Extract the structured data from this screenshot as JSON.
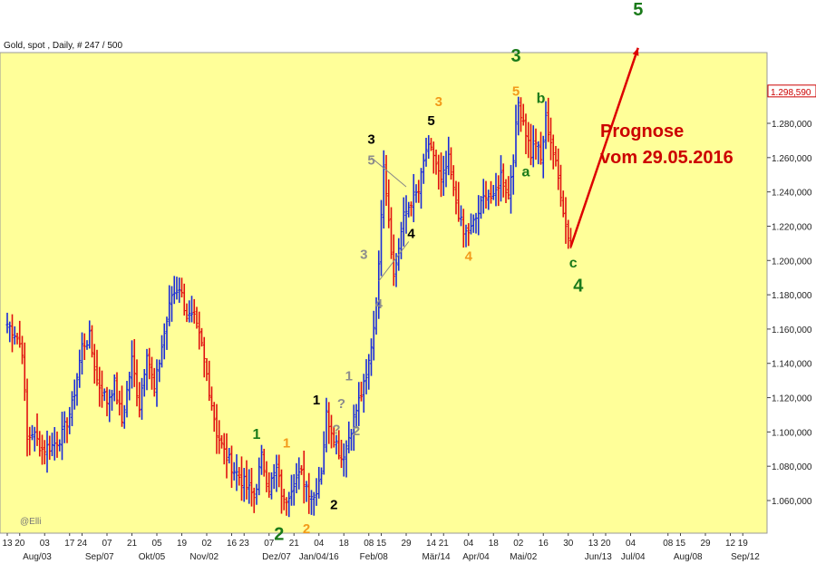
{
  "chart_data": {
    "type": "ohlc",
    "title": "Gold, spot , Daily, # 247 / 500",
    "watermark": "@Elli",
    "last_price_label": "1.298,590",
    "ylim": [
      1040,
      1330
    ],
    "y_ticks": [
      {
        "value": 1060,
        "label": "1.060,000"
      },
      {
        "value": 1080,
        "label": "1.080,000"
      },
      {
        "value": 1100,
        "label": "1.100,000"
      },
      {
        "value": 1120,
        "label": "1.120,000"
      },
      {
        "value": 1140,
        "label": "1.140,000"
      },
      {
        "value": 1160,
        "label": "1.160,000"
      },
      {
        "value": 1180,
        "label": "1.180,000"
      },
      {
        "value": 1200,
        "label": "1.200,000"
      },
      {
        "value": 1220,
        "label": "1.220,000"
      },
      {
        "value": 1240,
        "label": "1.240,000"
      },
      {
        "value": 1260,
        "label": "1.260,000"
      },
      {
        "value": 1280,
        "label": "1.280,000"
      }
    ],
    "x_day_ticks": [
      {
        "i": 0,
        "label": "13"
      },
      {
        "i": 5,
        "label": "20"
      },
      {
        "i": 15,
        "label": "03"
      },
      {
        "i": 25,
        "label": "17"
      },
      {
        "i": 30,
        "label": "24"
      },
      {
        "i": 40,
        "label": "07"
      },
      {
        "i": 50,
        "label": "21"
      },
      {
        "i": 60,
        "label": "05"
      },
      {
        "i": 70,
        "label": "19"
      },
      {
        "i": 80,
        "label": "02"
      },
      {
        "i": 90,
        "label": "16"
      },
      {
        "i": 95,
        "label": "23"
      },
      {
        "i": 105,
        "label": "07"
      },
      {
        "i": 115,
        "label": "21"
      },
      {
        "i": 125,
        "label": "04"
      },
      {
        "i": 135,
        "label": "18"
      },
      {
        "i": 145,
        "label": "08"
      },
      {
        "i": 150,
        "label": "15"
      },
      {
        "i": 160,
        "label": "29"
      },
      {
        "i": 170,
        "label": "14"
      },
      {
        "i": 175,
        "label": "21"
      },
      {
        "i": 185,
        "label": "04"
      },
      {
        "i": 195,
        "label": "18"
      },
      {
        "i": 205,
        "label": "02"
      },
      {
        "i": 215,
        "label": "16"
      },
      {
        "i": 225,
        "label": "30"
      },
      {
        "i": 235,
        "label": "13"
      },
      {
        "i": 240,
        "label": "20"
      },
      {
        "i": 250,
        "label": "04"
      },
      {
        "i": 265,
        "label": "08"
      },
      {
        "i": 270,
        "label": "15"
      },
      {
        "i": 280,
        "label": "29"
      },
      {
        "i": 290,
        "label": "12"
      },
      {
        "i": 295,
        "label": "19"
      }
    ],
    "x_month_ticks": [
      {
        "i": 12,
        "label": "Aug/03"
      },
      {
        "i": 37,
        "label": "Sep/07"
      },
      {
        "i": 58,
        "label": "Okt/05"
      },
      {
        "i": 79,
        "label": "Nov/02"
      },
      {
        "i": 108,
        "label": "Dez/07"
      },
      {
        "i": 125,
        "label": "Jan/04/16"
      },
      {
        "i": 147,
        "label": "Feb/08"
      },
      {
        "i": 172,
        "label": "Mär/14"
      },
      {
        "i": 188,
        "label": "Apr/04"
      },
      {
        "i": 207,
        "label": "Mai/02"
      },
      {
        "i": 237,
        "label": "Jun/13"
      },
      {
        "i": 251,
        "label": "Jul/04"
      },
      {
        "i": 273,
        "label": "Aug/08"
      },
      {
        "i": 296,
        "label": "Sep/12"
      }
    ],
    "anchors": [
      [
        0,
        1163
      ],
      [
        3,
        1158
      ],
      [
        6,
        1148
      ],
      [
        8,
        1095
      ],
      [
        10,
        1100
      ],
      [
        14,
        1090
      ],
      [
        18,
        1092
      ],
      [
        22,
        1098
      ],
      [
        26,
        1115
      ],
      [
        30,
        1150
      ],
      [
        33,
        1155
      ],
      [
        36,
        1130
      ],
      [
        40,
        1118
      ],
      [
        43,
        1128
      ],
      [
        46,
        1106
      ],
      [
        50,
        1142
      ],
      [
        53,
        1115
      ],
      [
        56,
        1148
      ],
      [
        59,
        1124
      ],
      [
        62,
        1150
      ],
      [
        66,
        1180
      ],
      [
        69,
        1185
      ],
      [
        72,
        1168
      ],
      [
        75,
        1165
      ],
      [
        78,
        1150
      ],
      [
        81,
        1125
      ],
      [
        84,
        1100
      ],
      [
        87,
        1088
      ],
      [
        91,
        1078
      ],
      [
        95,
        1070
      ],
      [
        99,
        1062
      ],
      [
        102,
        1085
      ],
      [
        105,
        1068
      ],
      [
        108,
        1078
      ],
      [
        111,
        1058
      ],
      [
        115,
        1072
      ],
      [
        118,
        1075
      ],
      [
        121,
        1066
      ],
      [
        123,
        1062
      ],
      [
        126,
        1078
      ],
      [
        128,
        1110
      ],
      [
        131,
        1098
      ],
      [
        134,
        1085
      ],
      [
        136,
        1092
      ],
      [
        139,
        1108
      ],
      [
        141,
        1118
      ],
      [
        144,
        1130
      ],
      [
        147,
        1162
      ],
      [
        149,
        1195
      ],
      [
        150,
        1230
      ],
      [
        151,
        1258
      ],
      [
        153,
        1225
      ],
      [
        155,
        1190
      ],
      [
        157,
        1208
      ],
      [
        159,
        1225
      ],
      [
        162,
        1235
      ],
      [
        165,
        1240
      ],
      [
        168,
        1265
      ],
      [
        171,
        1262
      ],
      [
        174,
        1245
      ],
      [
        177,
        1258
      ],
      [
        179,
        1240
      ],
      [
        181,
        1228
      ],
      [
        183,
        1215
      ],
      [
        186,
        1218
      ],
      [
        189,
        1228
      ],
      [
        192,
        1240
      ],
      [
        195,
        1235
      ],
      [
        198,
        1250
      ],
      [
        201,
        1238
      ],
      [
        203,
        1262
      ],
      [
        205,
        1292
      ],
      [
        207,
        1282
      ],
      [
        210,
        1262
      ],
      [
        212,
        1270
      ],
      [
        214,
        1258
      ],
      [
        216,
        1282
      ],
      [
        218,
        1270
      ],
      [
        220,
        1255
      ],
      [
        222,
        1240
      ],
      [
        224,
        1220
      ],
      [
        226,
        1210
      ]
    ],
    "prognosis": {
      "from": [
        226,
        1208
      ],
      "to": [
        253,
        1324
      ]
    },
    "annotation": [
      "Prognose",
      "vom 29.05.2016"
    ],
    "wave_labels": [
      {
        "text": "3",
        "i": 146,
        "y": 1268,
        "color": "black"
      },
      {
        "text": "5",
        "i": 146,
        "y": 1256,
        "color": "gray"
      },
      {
        "text": "5",
        "i": 170,
        "y": 1279,
        "color": "black"
      },
      {
        "text": "3",
        "i": 173,
        "y": 1290,
        "color": "orange"
      },
      {
        "text": "4",
        "i": 162,
        "y": 1213,
        "color": "black"
      },
      {
        "text": "3",
        "i": 143,
        "y": 1201,
        "color": "gray"
      },
      {
        "text": "4",
        "i": 149,
        "y": 1172,
        "color": "gray"
      },
      {
        "text": "4",
        "i": 185,
        "y": 1200,
        "color": "orange"
      },
      {
        "text": "3",
        "i": 204,
        "y": 1316,
        "color": "green"
      },
      {
        "text": "5",
        "i": 204,
        "y": 1296,
        "color": "orange"
      },
      {
        "text": "b",
        "i": 214,
        "y": 1292,
        "color": "green"
      },
      {
        "text": "a",
        "i": 208,
        "y": 1249,
        "color": "green"
      },
      {
        "text": "c",
        "i": 227,
        "y": 1196,
        "color": "green"
      },
      {
        "text": "4",
        "i": 229,
        "y": 1182,
        "color": "green"
      },
      {
        "text": "5",
        "i": 253,
        "y": 1343,
        "color": "green"
      },
      {
        "text": "1",
        "i": 100,
        "y": 1096,
        "color": "green"
      },
      {
        "text": "1",
        "i": 112,
        "y": 1091,
        "color": "orange"
      },
      {
        "text": "1",
        "i": 124,
        "y": 1116,
        "color": "black"
      },
      {
        "text": "2",
        "i": 131,
        "y": 1055,
        "color": "black"
      },
      {
        "text": "2",
        "i": 109,
        "y": 1037,
        "color": "green"
      },
      {
        "text": "2",
        "i": 120,
        "y": 1041,
        "color": "orange"
      },
      {
        "text": "1",
        "i": 137,
        "y": 1130,
        "color": "gray"
      },
      {
        "text": "?",
        "i": 134,
        "y": 1114,
        "color": "gray"
      },
      {
        "text": "?",
        "i": 132,
        "y": 1099,
        "color": "gray"
      },
      {
        "text": "2",
        "i": 140,
        "y": 1098,
        "color": "gray"
      }
    ],
    "colors": {
      "plot_bg": "#ffff99",
      "up": "#1a2bd8",
      "down": "#e01010",
      "frame": "#999999",
      "prognosis_line": "#dd0000",
      "annotation": "#cc0000",
      "wave_green": "#1a7a1a",
      "wave_orange": "#f29a1a",
      "wave_black": "#000000",
      "wave_gray": "#8c8c8c"
    }
  }
}
